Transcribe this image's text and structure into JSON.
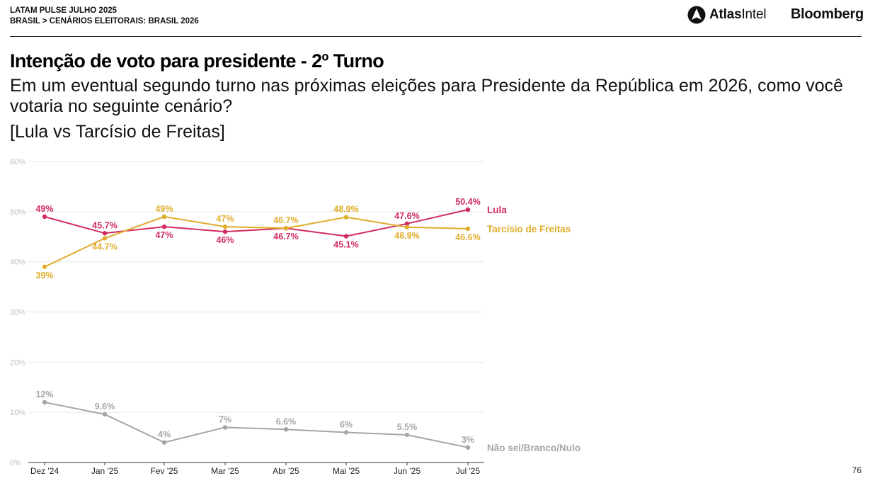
{
  "header": {
    "report": "LATAM PULSE JULHO 2025",
    "breadcrumb": [
      "BRASIL",
      ">",
      "CENÁRIOS ELEITORAIS: BRASIL 2026"
    ]
  },
  "logos": {
    "atlas_bold": "Atlas",
    "atlas_light": "Intel",
    "bloomberg": "Bloomberg"
  },
  "title": "Intenção de voto para presidente - 2º Turno",
  "question": "Em um eventual segundo turno nas próximas eleições para Presidente da República em 2026, como você votaria no seguinte cenário?",
  "scenario": "[Lula vs Tarcísio de Freitas]",
  "page_number": "76",
  "colors": {
    "lula": "#d12b5e",
    "tarcisio": "#e0ad2b",
    "nao_sei": "#a6a6a6",
    "grid": "#e6e6e6",
    "axis_text": "#bbbbbb"
  },
  "chart_data": {
    "type": "line",
    "categories": [
      "Dez '24",
      "Jan '25",
      "Fev '25",
      "Mar '25",
      "Abr '25",
      "Mai '25",
      "Jun '25",
      "Jul '25"
    ],
    "y_ticks": [
      "0%",
      "10%",
      "20%",
      "30%",
      "40%",
      "50%",
      "60%"
    ],
    "ylim": [
      0,
      60
    ],
    "grid": true,
    "legend": "right end of lines",
    "series": [
      {
        "name": "Lula",
        "values": [
          49,
          45.7,
          47,
          46,
          46.7,
          45.1,
          47.6,
          50.4
        ],
        "labels": [
          "49%",
          "45.7%",
          "47%",
          "46%",
          "46.7%",
          "45.1%",
          "47.6%",
          "50.4%"
        ],
        "label_pos": [
          "above",
          "above",
          "below",
          "below",
          "below",
          "below",
          "above",
          "above"
        ]
      },
      {
        "name": "Tarcísio de Freitas",
        "values": [
          39,
          44.7,
          49,
          47,
          46.7,
          48.9,
          46.9,
          46.6
        ],
        "labels": [
          "39%",
          "44.7%",
          "49%",
          "47%",
          "46.7%",
          "48.9%",
          "46.9%",
          "46.6%"
        ],
        "label_pos": [
          "below",
          "below",
          "above",
          "above",
          "above",
          "above",
          "below",
          "below"
        ]
      },
      {
        "name": "Não sei/Branco/Nulo",
        "values": [
          12,
          9.6,
          4,
          7,
          6.6,
          6,
          5.5,
          3
        ],
        "labels": [
          "12%",
          "9.6%",
          "4%",
          "7%",
          "6.6%",
          "6%",
          "5.5%",
          "3%"
        ],
        "label_pos": [
          "above",
          "above",
          "above",
          "above",
          "above",
          "above",
          "above",
          "above"
        ]
      }
    ]
  }
}
